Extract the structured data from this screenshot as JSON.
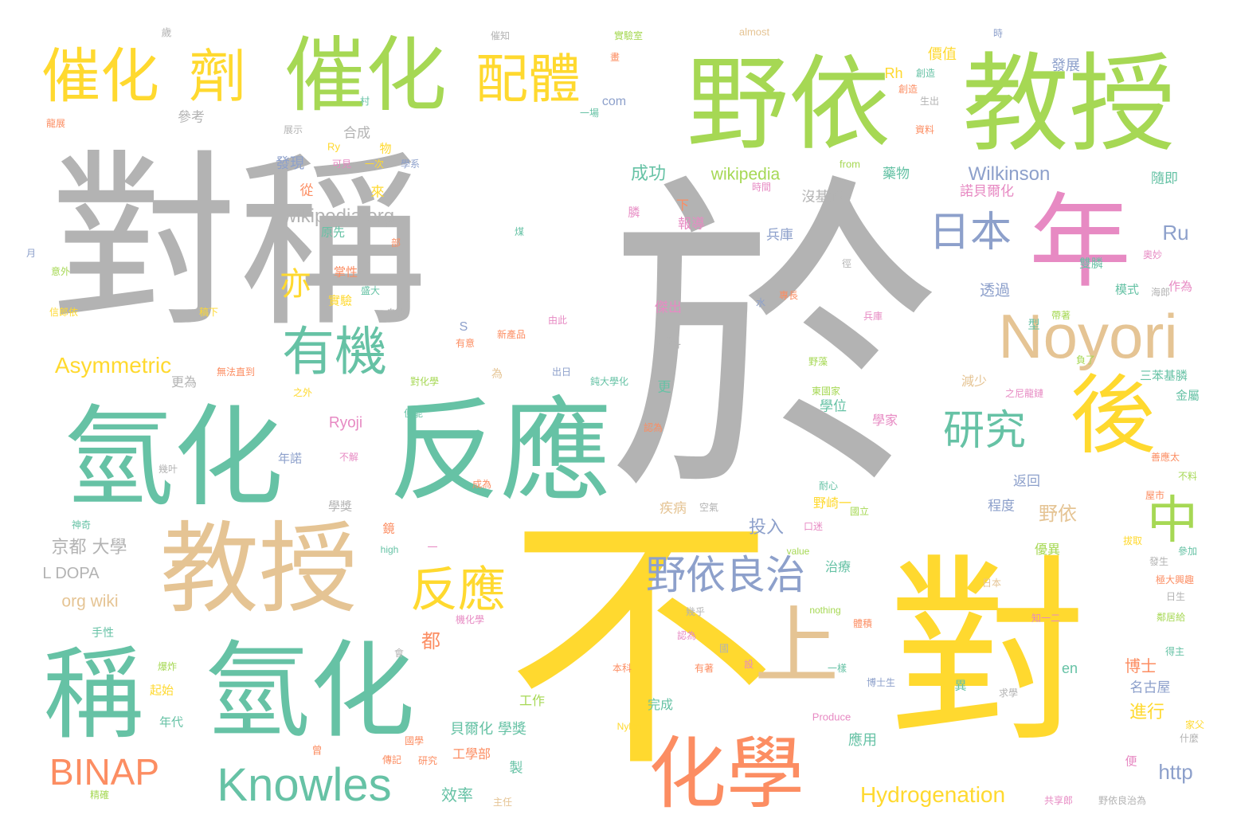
{
  "colors": {
    "gray": "#b3b3b3",
    "green": "#a6d854",
    "teal": "#66c2a5",
    "yellow": "#ffd92f",
    "tan": "#e5c494",
    "pink": "#e78ac3",
    "salmon": "#fc8d62",
    "blue": "#8da0cb"
  },
  "words": [
    {
      "text": "對稱",
      "color": "gray"
    },
    {
      "text": "於",
      "color": "gray"
    },
    {
      "text": "不",
      "color": "yellow"
    },
    {
      "text": "對",
      "color": "yellow"
    },
    {
      "text": "野依",
      "color": "green"
    },
    {
      "text": "教授",
      "color": "green"
    },
    {
      "text": "催化",
      "color": "green"
    },
    {
      "text": "催化",
      "color": "yellow"
    },
    {
      "text": "劑",
      "color": "yellow"
    },
    {
      "text": "配體",
      "color": "yellow"
    },
    {
      "text": "年",
      "color": "pink"
    },
    {
      "text": "氫化",
      "color": "teal"
    },
    {
      "text": "反應",
      "color": "teal"
    },
    {
      "text": "教授",
      "color": "tan"
    },
    {
      "text": "稱",
      "color": "teal"
    },
    {
      "text": "氫化",
      "color": "teal"
    },
    {
      "text": "後",
      "color": "yellow"
    },
    {
      "text": "Noyori",
      "color": "tan"
    },
    {
      "text": "上",
      "color": "tan"
    },
    {
      "text": "化學",
      "color": "salmon"
    },
    {
      "text": "中",
      "color": "green"
    },
    {
      "text": "有機",
      "color": "teal"
    },
    {
      "text": "研究",
      "color": "teal"
    },
    {
      "text": "日本",
      "color": "blue"
    },
    {
      "text": "野依良治",
      "color": "blue"
    },
    {
      "text": "反應",
      "color": "yellow"
    },
    {
      "text": "Knowles",
      "color": "teal"
    },
    {
      "text": "BINAP",
      "color": "salmon"
    },
    {
      "text": "Hydrogenation",
      "color": "yellow"
    },
    {
      "text": "Asymmetric",
      "color": "yellow"
    },
    {
      "text": "Wilkinson",
      "color": "blue"
    },
    {
      "text": "wikipedia org",
      "color": "gray"
    },
    {
      "text": "wikipedia",
      "color": "green"
    },
    {
      "text": "亦",
      "color": "yellow"
    },
    {
      "text": "Ru",
      "color": "blue"
    },
    {
      "text": "Rh",
      "color": "yellow"
    },
    {
      "text": "com",
      "color": "blue"
    },
    {
      "text": "from",
      "color": "green"
    },
    {
      "text": "http",
      "color": "blue"
    },
    {
      "text": "org wiki",
      "color": "tan"
    },
    {
      "text": "L DOPA",
      "color": "gray"
    },
    {
      "text": "京都 大學",
      "color": "gray"
    },
    {
      "text": "Ryoji",
      "color": "pink"
    },
    {
      "text": "almost",
      "color": "tan"
    },
    {
      "text": "value",
      "color": "green"
    },
    {
      "text": "nothing",
      "color": "green"
    },
    {
      "text": "high",
      "color": "teal"
    },
    {
      "text": "Nylon",
      "color": "yellow"
    },
    {
      "text": "Produce",
      "color": "pink"
    },
    {
      "text": "en",
      "color": "teal"
    },
    {
      "text": "S",
      "color": "blue"
    },
    {
      "text": "Ry",
      "color": "yellow"
    },
    {
      "text": "成功",
      "color": "teal"
    },
    {
      "text": "發現",
      "color": "blue"
    },
    {
      "text": "合成",
      "color": "gray"
    },
    {
      "text": "參考",
      "color": "gray"
    },
    {
      "text": "藥物",
      "color": "teal"
    },
    {
      "text": "諾貝爾化",
      "color": "pink"
    },
    {
      "text": "沒基礎",
      "color": "gray"
    },
    {
      "text": "兵庫",
      "color": "blue"
    },
    {
      "text": "透過",
      "color": "blue"
    },
    {
      "text": "報導",
      "color": "pink"
    },
    {
      "text": "原先",
      "color": "teal"
    },
    {
      "text": "掌性",
      "color": "salmon"
    },
    {
      "text": "實驗",
      "color": "yellow"
    },
    {
      "text": "傑出",
      "color": "pink"
    },
    {
      "text": "百科",
      "color": "gray"
    },
    {
      "text": "更為",
      "color": "gray"
    },
    {
      "text": "學位",
      "color": "teal"
    },
    {
      "text": "學家",
      "color": "pink"
    },
    {
      "text": "減少",
      "color": "tan"
    },
    {
      "text": "年諾",
      "color": "blue"
    },
    {
      "text": "學獎",
      "color": "gray"
    },
    {
      "text": "返回",
      "color": "blue"
    },
    {
      "text": "程度",
      "color": "blue"
    },
    {
      "text": "野依",
      "color": "tan"
    },
    {
      "text": "野崎一",
      "color": "yellow"
    },
    {
      "text": "投入",
      "color": "blue"
    },
    {
      "text": "疾病",
      "color": "tan"
    },
    {
      "text": "治療",
      "color": "teal"
    },
    {
      "text": "優異",
      "color": "green"
    },
    {
      "text": "博士",
      "color": "salmon"
    },
    {
      "text": "名古屋",
      "color": "blue"
    },
    {
      "text": "進行",
      "color": "yellow"
    },
    {
      "text": "工作",
      "color": "green"
    },
    {
      "text": "貝爾化 學獎",
      "color": "teal"
    },
    {
      "text": "工學部",
      "color": "salmon"
    },
    {
      "text": "年代",
      "color": "teal"
    },
    {
      "text": "起始",
      "color": "yellow"
    },
    {
      "text": "完成",
      "color": "teal"
    },
    {
      "text": "效率",
      "color": "teal"
    },
    {
      "text": "應用",
      "color": "teal"
    },
    {
      "text": "價值",
      "color": "yellow"
    },
    {
      "text": "發展",
      "color": "blue"
    },
    {
      "text": "隨即",
      "color": "teal"
    },
    {
      "text": "模式",
      "color": "teal"
    },
    {
      "text": "作為",
      "color": "pink"
    },
    {
      "text": "三苯基膦",
      "color": "teal"
    },
    {
      "text": "金屬",
      "color": "teal"
    },
    {
      "text": "雙膦",
      "color": "teal"
    },
    {
      "text": "手性",
      "color": "teal"
    },
    {
      "text": "型",
      "color": "teal"
    },
    {
      "text": "從",
      "color": "salmon"
    },
    {
      "text": "來",
      "color": "yellow"
    },
    {
      "text": "物",
      "color": "yellow"
    },
    {
      "text": "下",
      "color": "salmon"
    },
    {
      "text": "膦",
      "color": "pink"
    },
    {
      "text": "都",
      "color": "salmon"
    },
    {
      "text": "更",
      "color": "teal"
    },
    {
      "text": "製",
      "color": "teal"
    },
    {
      "text": "便",
      "color": "pink"
    },
    {
      "text": "異",
      "color": "teal"
    },
    {
      "text": "鏡",
      "color": "salmon"
    },
    {
      "text": "為",
      "color": "tan"
    },
    {
      "text": "歲",
      "color": "gray"
    },
    {
      "text": "時",
      "color": "blue"
    },
    {
      "text": "會",
      "color": "gray"
    },
    {
      "text": "曾",
      "color": "salmon"
    },
    {
      "text": "一",
      "color": "pink"
    },
    {
      "text": "水",
      "color": "blue"
    },
    {
      "text": "月",
      "color": "blue"
    },
    {
      "text": "村",
      "color": "teal"
    },
    {
      "text": "畫",
      "color": "salmon"
    },
    {
      "text": "國",
      "color": "gray"
    },
    {
      "text": "設",
      "color": "pink"
    },
    {
      "text": "催知",
      "color": "gray"
    },
    {
      "text": "實驗室",
      "color": "green"
    },
    {
      "text": "一場",
      "color": "teal"
    },
    {
      "text": "創造",
      "color": "salmon"
    },
    {
      "text": "生出",
      "color": "gray"
    },
    {
      "text": "資料",
      "color": "salmon"
    },
    {
      "text": "時間",
      "color": "pink"
    },
    {
      "text": "展示",
      "color": "gray"
    },
    {
      "text": "可見",
      "color": "pink"
    },
    {
      "text": "一次",
      "color": "yellow"
    },
    {
      "text": "學系",
      "color": "blue"
    },
    {
      "text": "龍展",
      "color": "salmon"
    },
    {
      "text": "煤",
      "color": "teal"
    },
    {
      "text": "部",
      "color": "salmon"
    },
    {
      "text": "奧妙",
      "color": "pink"
    },
    {
      "text": "海郎",
      "color": "gray"
    },
    {
      "text": "徑",
      "color": "gray"
    },
    {
      "text": "意外",
      "color": "green"
    },
    {
      "text": "盛大",
      "color": "teal"
    },
    {
      "text": "自此",
      "color": "gray"
    },
    {
      "text": "信郎依",
      "color": "yellow"
    },
    {
      "text": "稿下",
      "color": "yellow"
    },
    {
      "text": "有意",
      "color": "salmon"
    },
    {
      "text": "新產品",
      "color": "salmon"
    },
    {
      "text": "由此",
      "color": "pink"
    },
    {
      "text": "兵庫",
      "color": "pink"
    },
    {
      "text": "專長",
      "color": "salmon"
    },
    {
      "text": "帶著",
      "color": "green"
    },
    {
      "text": "負了",
      "color": "green"
    },
    {
      "text": "對化學",
      "color": "green"
    },
    {
      "text": "出日",
      "color": "blue"
    },
    {
      "text": "鈍大學化",
      "color": "teal"
    },
    {
      "text": "無法直到",
      "color": "salmon"
    },
    {
      "text": "野藻",
      "color": "green"
    },
    {
      "text": "東國家",
      "color": "green"
    },
    {
      "text": "之外",
      "color": "yellow"
    },
    {
      "text": "之尼龍鏈",
      "color": "pink"
    },
    {
      "text": "便能",
      "color": "teal"
    },
    {
      "text": "認為",
      "color": "salmon"
    },
    {
      "text": "善應太",
      "color": "salmon"
    },
    {
      "text": "幾叶",
      "color": "gray"
    },
    {
      "text": "不解",
      "color": "pink"
    },
    {
      "text": "神奇",
      "color": "teal"
    },
    {
      "text": "成為",
      "color": "salmon"
    },
    {
      "text": "空氣",
      "color": "gray"
    },
    {
      "text": "口迷",
      "color": "pink"
    },
    {
      "text": "國立",
      "color": "green"
    },
    {
      "text": "屋市",
      "color": "salmon"
    },
    {
      "text": "不料",
      "color": "green"
    },
    {
      "text": "參加",
      "color": "teal"
    },
    {
      "text": "發生",
      "color": "gray"
    },
    {
      "text": "拔取",
      "color": "yellow"
    },
    {
      "text": "極大興趣",
      "color": "salmon"
    },
    {
      "text": "日生",
      "color": "gray"
    },
    {
      "text": "鄰居給",
      "color": "green"
    },
    {
      "text": "幾乎",
      "color": "gray"
    },
    {
      "text": "體積",
      "color": "salmon"
    },
    {
      "text": "認為",
      "color": "pink"
    },
    {
      "text": "有著",
      "color": "salmon"
    },
    {
      "text": "機化學",
      "color": "pink"
    },
    {
      "text": "爆炸",
      "color": "green"
    },
    {
      "text": "本科",
      "color": "salmon"
    },
    {
      "text": "一樣",
      "color": "teal"
    },
    {
      "text": "博士生",
      "color": "blue"
    },
    {
      "text": "求學",
      "color": "gray"
    },
    {
      "text": "得主",
      "color": "teal"
    },
    {
      "text": "家父",
      "color": "yellow"
    },
    {
      "text": "什麼",
      "color": "gray"
    },
    {
      "text": "傳記",
      "color": "salmon"
    },
    {
      "text": "研究",
      "color": "salmon"
    },
    {
      "text": "主任",
      "color": "tan"
    },
    {
      "text": "共享郎",
      "color": "pink"
    },
    {
      "text": "野依良治為",
      "color": "gray"
    },
    {
      "text": "精確",
      "color": "green"
    },
    {
      "text": "耐心",
      "color": "teal"
    },
    {
      "text": "創造",
      "color": "teal"
    },
    {
      "text": "國學",
      "color": "salmon"
    },
    {
      "text": "知一二",
      "color": "pink"
    },
    {
      "text": "日本",
      "color": "tan"
    }
  ]
}
